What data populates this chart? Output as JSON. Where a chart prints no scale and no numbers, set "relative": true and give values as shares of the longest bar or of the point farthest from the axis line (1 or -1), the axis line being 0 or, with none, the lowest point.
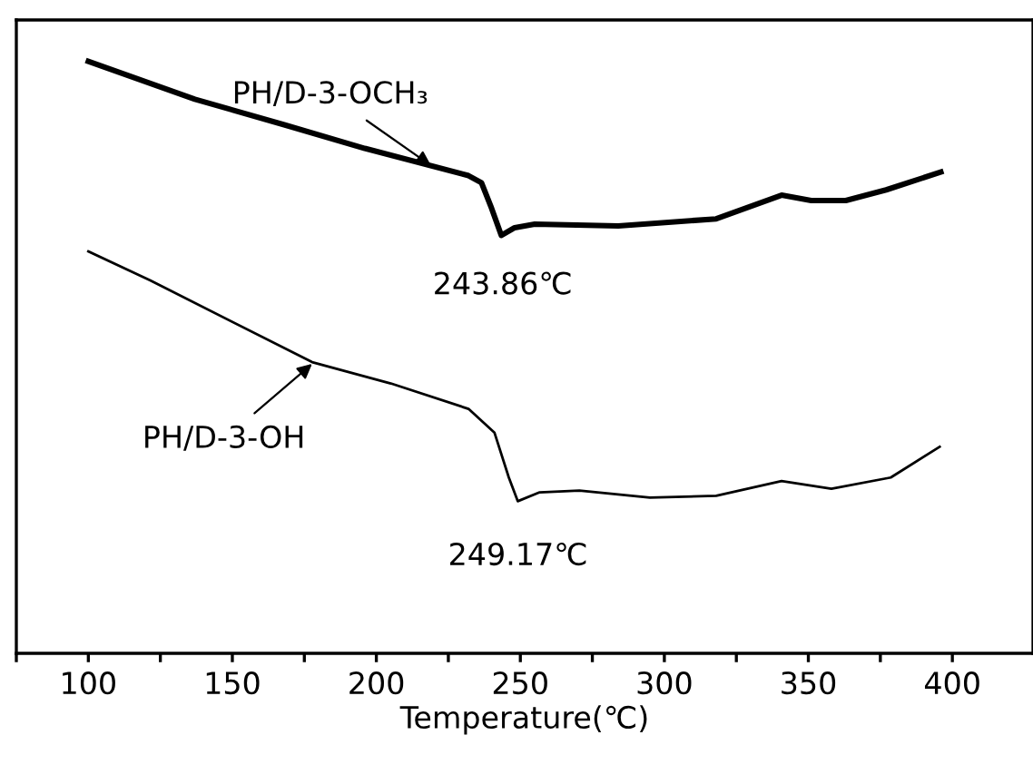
{
  "chart_data": {
    "type": "line",
    "relative": true,
    "xlabel": "Temperature(℃)",
    "xlim": [
      75,
      428
    ],
    "xticks": [
      {
        "value": 75,
        "label": null
      },
      100,
      {
        "value": 125,
        "label": null
      },
      150,
      {
        "value": 175,
        "label": null
      },
      200,
      {
        "value": 225,
        "label": null
      },
      250,
      {
        "value": 275,
        "label": null
      },
      300,
      {
        "value": 325,
        "label": null
      },
      350,
      {
        "value": 375,
        "label": null
      },
      400
    ],
    "tick_labels": "x",
    "grid": false,
    "series": [
      {
        "color": "#000000",
        "x": [
          100,
          137,
          168,
          196,
          232,
          236.5,
          240,
          243.4,
          248,
          255,
          284,
          318,
          340.7,
          351,
          363,
          377,
          396
        ],
        "values": [
          1,
          0.936,
          0.893,
          0.853,
          0.807,
          0.795,
          0.752,
          0.706,
          0.719,
          0.725,
          0.722,
          0.734,
          0.774,
          0.765,
          0.765,
          0.783,
          0.813
        ]
      },
      {
        "color": "#000000",
        "x": [
          100,
          121.5,
          177.7,
          205,
          232,
          241,
          246,
          249.1,
          256.7,
          270.5,
          295,
          318,
          340.7,
          358,
          378.6,
          395.6
        ],
        "values": [
          0.679,
          0.63,
          0.492,
          0.456,
          0.413,
          0.373,
          0.297,
          0.257,
          0.272,
          0.275,
          0.263,
          0.266,
          0.291,
          0.278,
          0.297,
          0.349
        ]
      }
    ],
    "annotations": [
      {
        "text": "PH/D-3-OCH₃",
        "x": 219,
        "y": 0.824
      },
      {
        "text": "243.86℃",
        "x": 243.86,
        "y": 0.706
      },
      {
        "text": "PH/D-3-OH",
        "x": 177.7,
        "y": 0.489
      },
      {
        "text": "249.17℃",
        "x": 249.17,
        "y": 0.257
      }
    ]
  }
}
